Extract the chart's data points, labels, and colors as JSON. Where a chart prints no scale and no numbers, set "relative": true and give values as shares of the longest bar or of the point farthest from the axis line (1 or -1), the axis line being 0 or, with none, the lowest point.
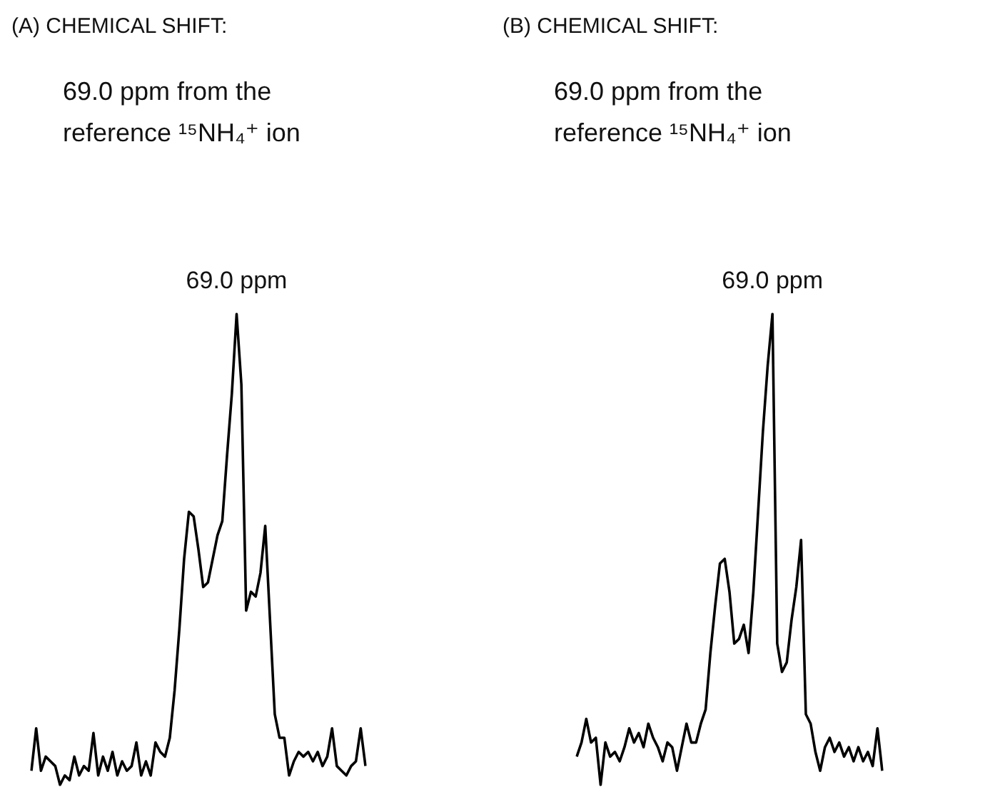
{
  "chart_data": [
    {
      "type": "line",
      "title": "(A) CHEMICAL SHIFT:",
      "subtitle": "69.0 ppm from the reference ¹⁵NH₄⁺ ion",
      "relative": true,
      "categories": [
        null,
        null,
        null,
        null,
        null,
        null,
        null,
        null,
        null,
        null,
        null,
        null,
        null,
        null,
        null,
        null,
        null,
        null,
        null,
        null,
        null,
        null,
        null,
        null,
        null,
        null,
        null,
        null,
        null,
        null,
        null,
        null,
        null,
        null,
        null,
        null,
        null,
        null,
        null,
        null,
        null,
        null,
        null,
        null,
        null,
        null,
        null,
        null,
        null,
        null,
        null,
        null,
        null,
        null,
        null,
        null,
        null,
        null,
        null,
        null,
        null,
        null,
        null,
        null,
        null,
        null,
        null,
        null,
        null,
        null,
        null
      ],
      "series": [
        {
          "color": "#000000",
          "values": [
            0.03,
            0.12,
            0.03,
            0.06,
            0.05,
            0.04,
            0,
            0.02,
            0.01,
            0.06,
            0.02,
            0.04,
            0.03,
            0.11,
            0.02,
            0.06,
            0.03,
            0.07,
            0.02,
            0.05,
            0.03,
            0.04,
            0.09,
            0.02,
            0.05,
            0.02,
            0.09,
            0.07,
            0.06,
            0.1,
            0.2,
            0.33,
            0.48,
            0.58,
            0.57,
            0.5,
            0.42,
            0.43,
            0.48,
            0.53,
            0.56,
            0.7,
            0.83,
            1.0,
            0.85,
            0.37,
            0.41,
            0.4,
            0.45,
            0.55,
            0.35,
            0.15,
            0.1,
            0.1,
            0.02,
            0.05,
            0.07,
            0.06,
            0.07,
            0.05,
            0.07,
            0.04,
            0.06,
            0.12,
            0.04,
            0.03,
            0.02,
            0.04,
            0.05,
            0.12,
            0.04
          ]
        }
      ],
      "annotations": [
        {
          "text": "69.0 ppm",
          "y": 1.0
        }
      ]
    },
    {
      "type": "line",
      "title": "(B) CHEMICAL SHIFT:",
      "subtitle": "69.0 ppm from the reference ¹⁵NH₄⁺ ion",
      "relative": true,
      "categories": [
        null,
        null,
        null,
        null,
        null,
        null,
        null,
        null,
        null,
        null,
        null,
        null,
        null,
        null,
        null,
        null,
        null,
        null,
        null,
        null,
        null,
        null,
        null,
        null,
        null,
        null,
        null,
        null,
        null,
        null,
        null,
        null,
        null,
        null,
        null,
        null,
        null,
        null,
        null,
        null,
        null,
        null,
        null,
        null,
        null,
        null,
        null,
        null,
        null,
        null,
        null,
        null,
        null,
        null,
        null,
        null,
        null,
        null,
        null,
        null,
        null,
        null,
        null,
        null,
        null
      ],
      "series": [
        {
          "color": "#000000",
          "values": [
            0.06,
            0.09,
            0.14,
            0.09,
            0.1,
            0,
            0.09,
            0.06,
            0.07,
            0.05,
            0.08,
            0.12,
            0.09,
            0.11,
            0.08,
            0.13,
            0.1,
            0.08,
            0.05,
            0.09,
            0.08,
            0.03,
            0.08,
            0.13,
            0.09,
            0.09,
            0.13,
            0.16,
            0.28,
            0.38,
            0.47,
            0.48,
            0.41,
            0.3,
            0.31,
            0.34,
            0.28,
            0.41,
            0.58,
            0.75,
            0.89,
            1.0,
            0.3,
            0.24,
            0.26,
            0.35,
            0.42,
            0.52,
            0.15,
            0.13,
            0.07,
            0.03,
            0.08,
            0.1,
            0.07,
            0.09,
            0.06,
            0.08,
            0.05,
            0.08,
            0.05,
            0.07,
            0.04,
            0.12,
            0.03
          ]
        }
      ],
      "annotations": [
        {
          "text": "69.0 ppm",
          "y": 1.0
        }
      ]
    }
  ]
}
